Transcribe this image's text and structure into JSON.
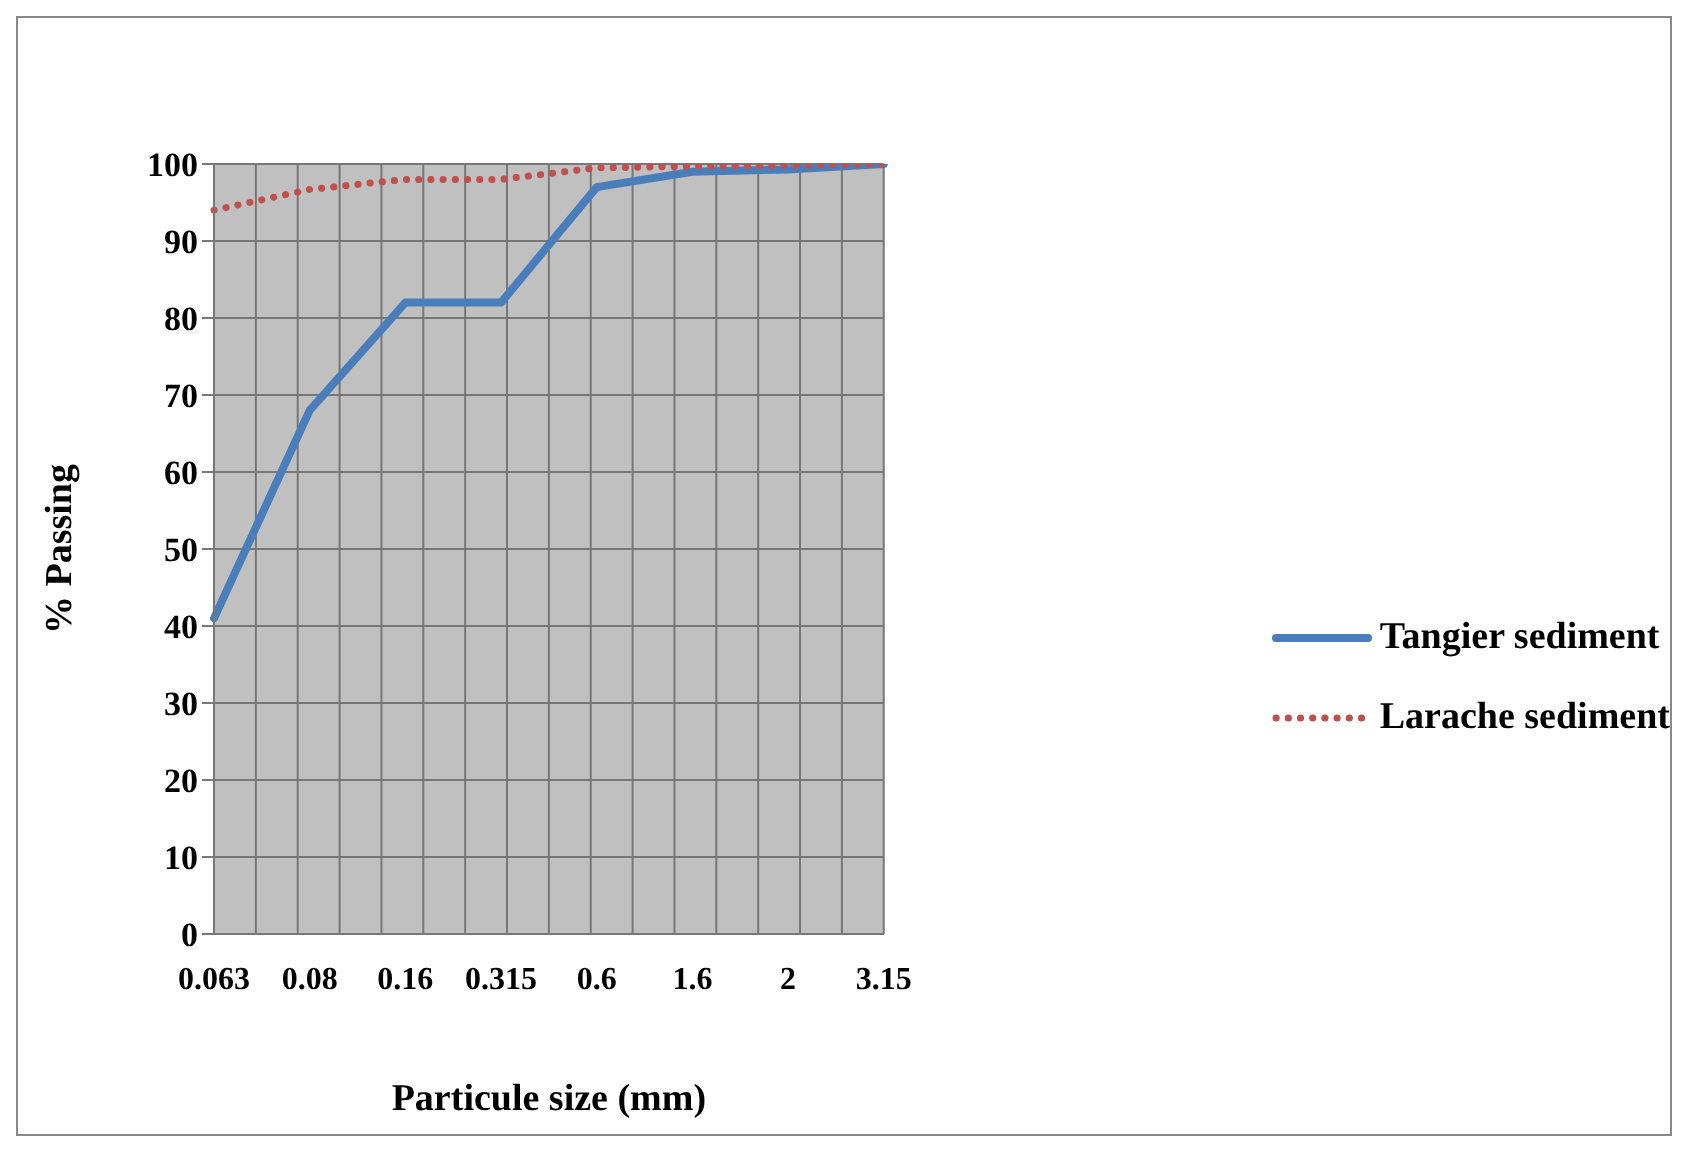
{
  "chart_data": {
    "type": "line",
    "xlabel": "Particule size (mm)",
    "ylabel": "% Passing",
    "categories": [
      "0.063",
      "0.08",
      "0.16",
      "0.315",
      "0.6",
      "1.6",
      "2",
      "3.15"
    ],
    "series": [
      {
        "name": "Tangier sediment",
        "color": "#4a7ebb",
        "line_style": "solid",
        "values": [
          41,
          68,
          82,
          82,
          97,
          99,
          99.3,
          100
        ]
      },
      {
        "name": "Larache sediment",
        "color": "#c0504d",
        "line_style": "dotted",
        "values": [
          94,
          96.7,
          98,
          98,
          99.5,
          99.7,
          99.8,
          100
        ]
      }
    ],
    "ylim": [
      0,
      100
    ],
    "yticks": [
      0,
      10,
      20,
      30,
      40,
      50,
      60,
      70,
      80,
      90,
      100
    ],
    "grid": true,
    "legend": "right",
    "marker": "none"
  }
}
